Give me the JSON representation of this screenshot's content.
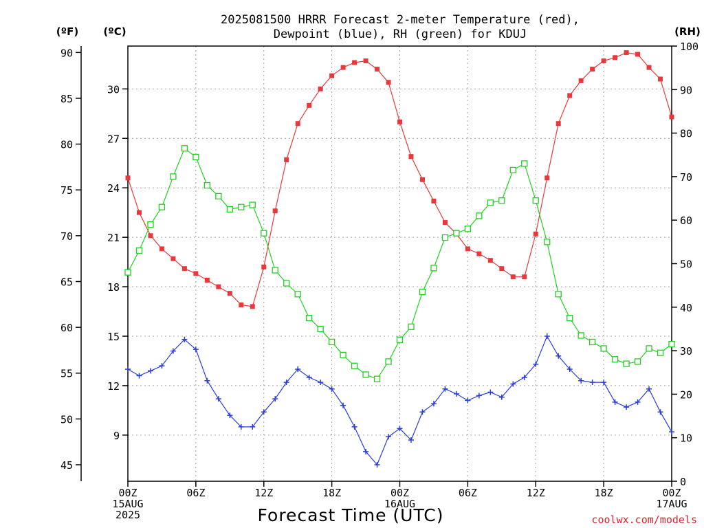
{
  "title_line1": "2025081500 HRRR Forecast 2-meter Temperature (red),",
  "title_line2": "Dewpoint (blue), RH (green) for KDUJ",
  "unit_f": "(ºF)",
  "unit_c": "(ºC)",
  "unit_rh": "(RH)",
  "xtitle": "Forecast Time (UTC)",
  "credit": "coolwx.com/models",
  "colors": {
    "temperature": "#e8383b",
    "dewpoint": "#2a3be0",
    "rh": "#1fd11f",
    "grid": "#a0a0a0"
  },
  "chart_data": {
    "type": "line",
    "title": "2025081500 HRRR Forecast 2-meter Temperature (red), Dewpoint (blue), RH (green) for KDUJ",
    "xlabel": "Forecast Time (UTC)",
    "x_hours": [
      0,
      1,
      2,
      3,
      4,
      5,
      6,
      7,
      8,
      9,
      10,
      11,
      12,
      13,
      14,
      15,
      16,
      17,
      18,
      19,
      20,
      21,
      22,
      23,
      24,
      25,
      26,
      27,
      28,
      29,
      30,
      31,
      32,
      33,
      34,
      35,
      36,
      37,
      38,
      39,
      40,
      41,
      42,
      43,
      44,
      45,
      46,
      47,
      48
    ],
    "x_ticks": [
      {
        "hour": 0,
        "lines": [
          "00Z",
          "15AUG",
          "2025"
        ]
      },
      {
        "hour": 6,
        "lines": [
          "06Z"
        ]
      },
      {
        "hour": 12,
        "lines": [
          "12Z"
        ]
      },
      {
        "hour": 18,
        "lines": [
          "18Z"
        ]
      },
      {
        "hour": 24,
        "lines": [
          "00Z",
          "16AUG"
        ]
      },
      {
        "hour": 30,
        "lines": [
          "06Z"
        ]
      },
      {
        "hour": 36,
        "lines": [
          "12Z"
        ]
      },
      {
        "hour": 42,
        "lines": [
          "18Z"
        ]
      },
      {
        "hour": 48,
        "lines": [
          "00Z",
          "17AUG"
        ]
      }
    ],
    "left_axis_c": {
      "range": [
        6.2,
        32.6
      ],
      "ticks": [
        "9",
        "12",
        "15",
        "18",
        "21",
        "24",
        "27",
        "30"
      ]
    },
    "left_axis_f": {
      "range": [
        43.2,
        90.7
      ],
      "ticks": [
        "45",
        "50",
        "55",
        "60",
        "65",
        "70",
        "75",
        "80",
        "85",
        "90"
      ]
    },
    "right_axis_rh": {
      "range": [
        0,
        100
      ],
      "ticks": [
        "0",
        "10",
        "20",
        "30",
        "40",
        "50",
        "60",
        "70",
        "80",
        "90",
        "100"
      ]
    },
    "series": [
      {
        "name": "Temperature",
        "units": "degC",
        "axis": "left_c",
        "marker": "filled-square",
        "values": [
          24.6,
          22.5,
          21.1,
          20.3,
          19.7,
          19.1,
          18.8,
          18.4,
          18.0,
          17.6,
          16.9,
          16.8,
          19.2,
          22.6,
          25.7,
          27.9,
          29.0,
          30.0,
          30.8,
          31.3,
          31.6,
          31.7,
          31.2,
          30.4,
          28.0,
          25.9,
          24.5,
          23.2,
          21.9,
          21.2,
          20.3,
          20.0,
          19.6,
          19.1,
          18.6,
          18.6,
          21.2,
          24.6,
          27.9,
          29.6,
          30.5,
          31.2,
          31.7,
          31.9,
          32.2,
          32.1,
          31.3,
          30.6,
          28.3
        ]
      },
      {
        "name": "Dewpoint",
        "units": "degC",
        "axis": "left_c",
        "marker": "plus",
        "values": [
          13.0,
          12.6,
          12.9,
          13.2,
          14.1,
          14.8,
          14.2,
          12.3,
          11.2,
          10.2,
          9.5,
          9.5,
          10.4,
          11.2,
          12.2,
          13.0,
          12.5,
          12.2,
          11.8,
          10.8,
          9.5,
          8.0,
          7.2,
          8.9,
          9.4,
          8.7,
          10.4,
          10.9,
          11.8,
          11.5,
          11.1,
          11.4,
          11.6,
          11.3,
          12.1,
          12.5,
          13.3,
          15.0,
          13.8,
          13.0,
          12.3,
          12.2,
          12.2,
          11.0,
          10.7,
          11.0,
          11.8,
          10.4,
          9.2
        ]
      },
      {
        "name": "RH",
        "units": "%",
        "axis": "right_rh",
        "marker": "open-square",
        "values": [
          48,
          53,
          59,
          63,
          70,
          76.5,
          74.5,
          68,
          65.5,
          62.5,
          63,
          63.5,
          57,
          48.5,
          45.5,
          43,
          37.5,
          35,
          32,
          29,
          26.5,
          24.5,
          23.5,
          27.5,
          32.5,
          35.5,
          43.5,
          49,
          56,
          57,
          58,
          61,
          64,
          64.5,
          71.5,
          73,
          64.5,
          55,
          43,
          37.5,
          33.5,
          32,
          30.5,
          28,
          27,
          27.5,
          30.5,
          29.5,
          31.5
        ]
      }
    ]
  }
}
